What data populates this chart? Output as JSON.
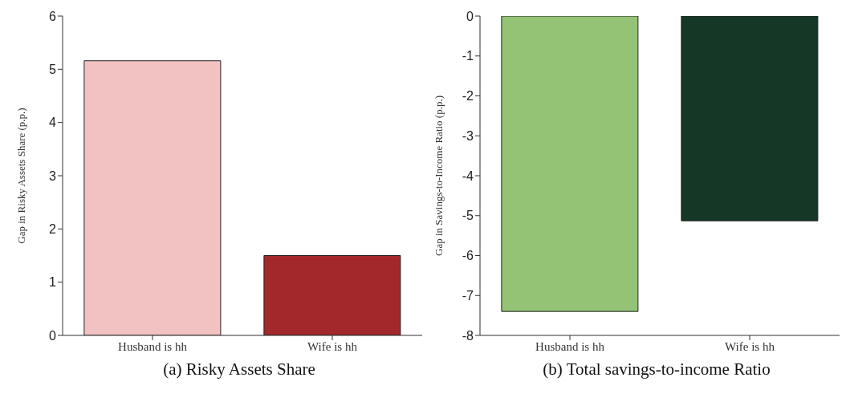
{
  "chart_data": [
    {
      "type": "bar",
      "title": "(a) Risky Assets Share",
      "ylabel": "Gap in Risky Assets Share (p.p.)",
      "categories": [
        "Husband is hh",
        "Wife is hh"
      ],
      "values": [
        5.16,
        1.5
      ],
      "colors": [
        "#f2c2c2",
        "#a3282b"
      ],
      "ylim": [
        0,
        6
      ],
      "yticks": [
        0,
        1,
        2,
        3,
        4,
        5,
        6
      ],
      "grid": false,
      "legend": false
    },
    {
      "type": "bar",
      "title": "(b) Total savings-to-income Ratio",
      "ylabel": "Gap in Savings-to-Income Ratio (p.p.)",
      "categories": [
        "Husband is hh",
        "Wife is hh"
      ],
      "values": [
        -7.4,
        -5.13
      ],
      "colors": [
        "#95c375",
        "#143726"
      ],
      "ylim": [
        -8,
        0
      ],
      "yticks": [
        -8,
        -7,
        -6,
        -5,
        -4,
        -3,
        -2,
        -1,
        0
      ],
      "grid": false,
      "legend": false
    }
  ]
}
